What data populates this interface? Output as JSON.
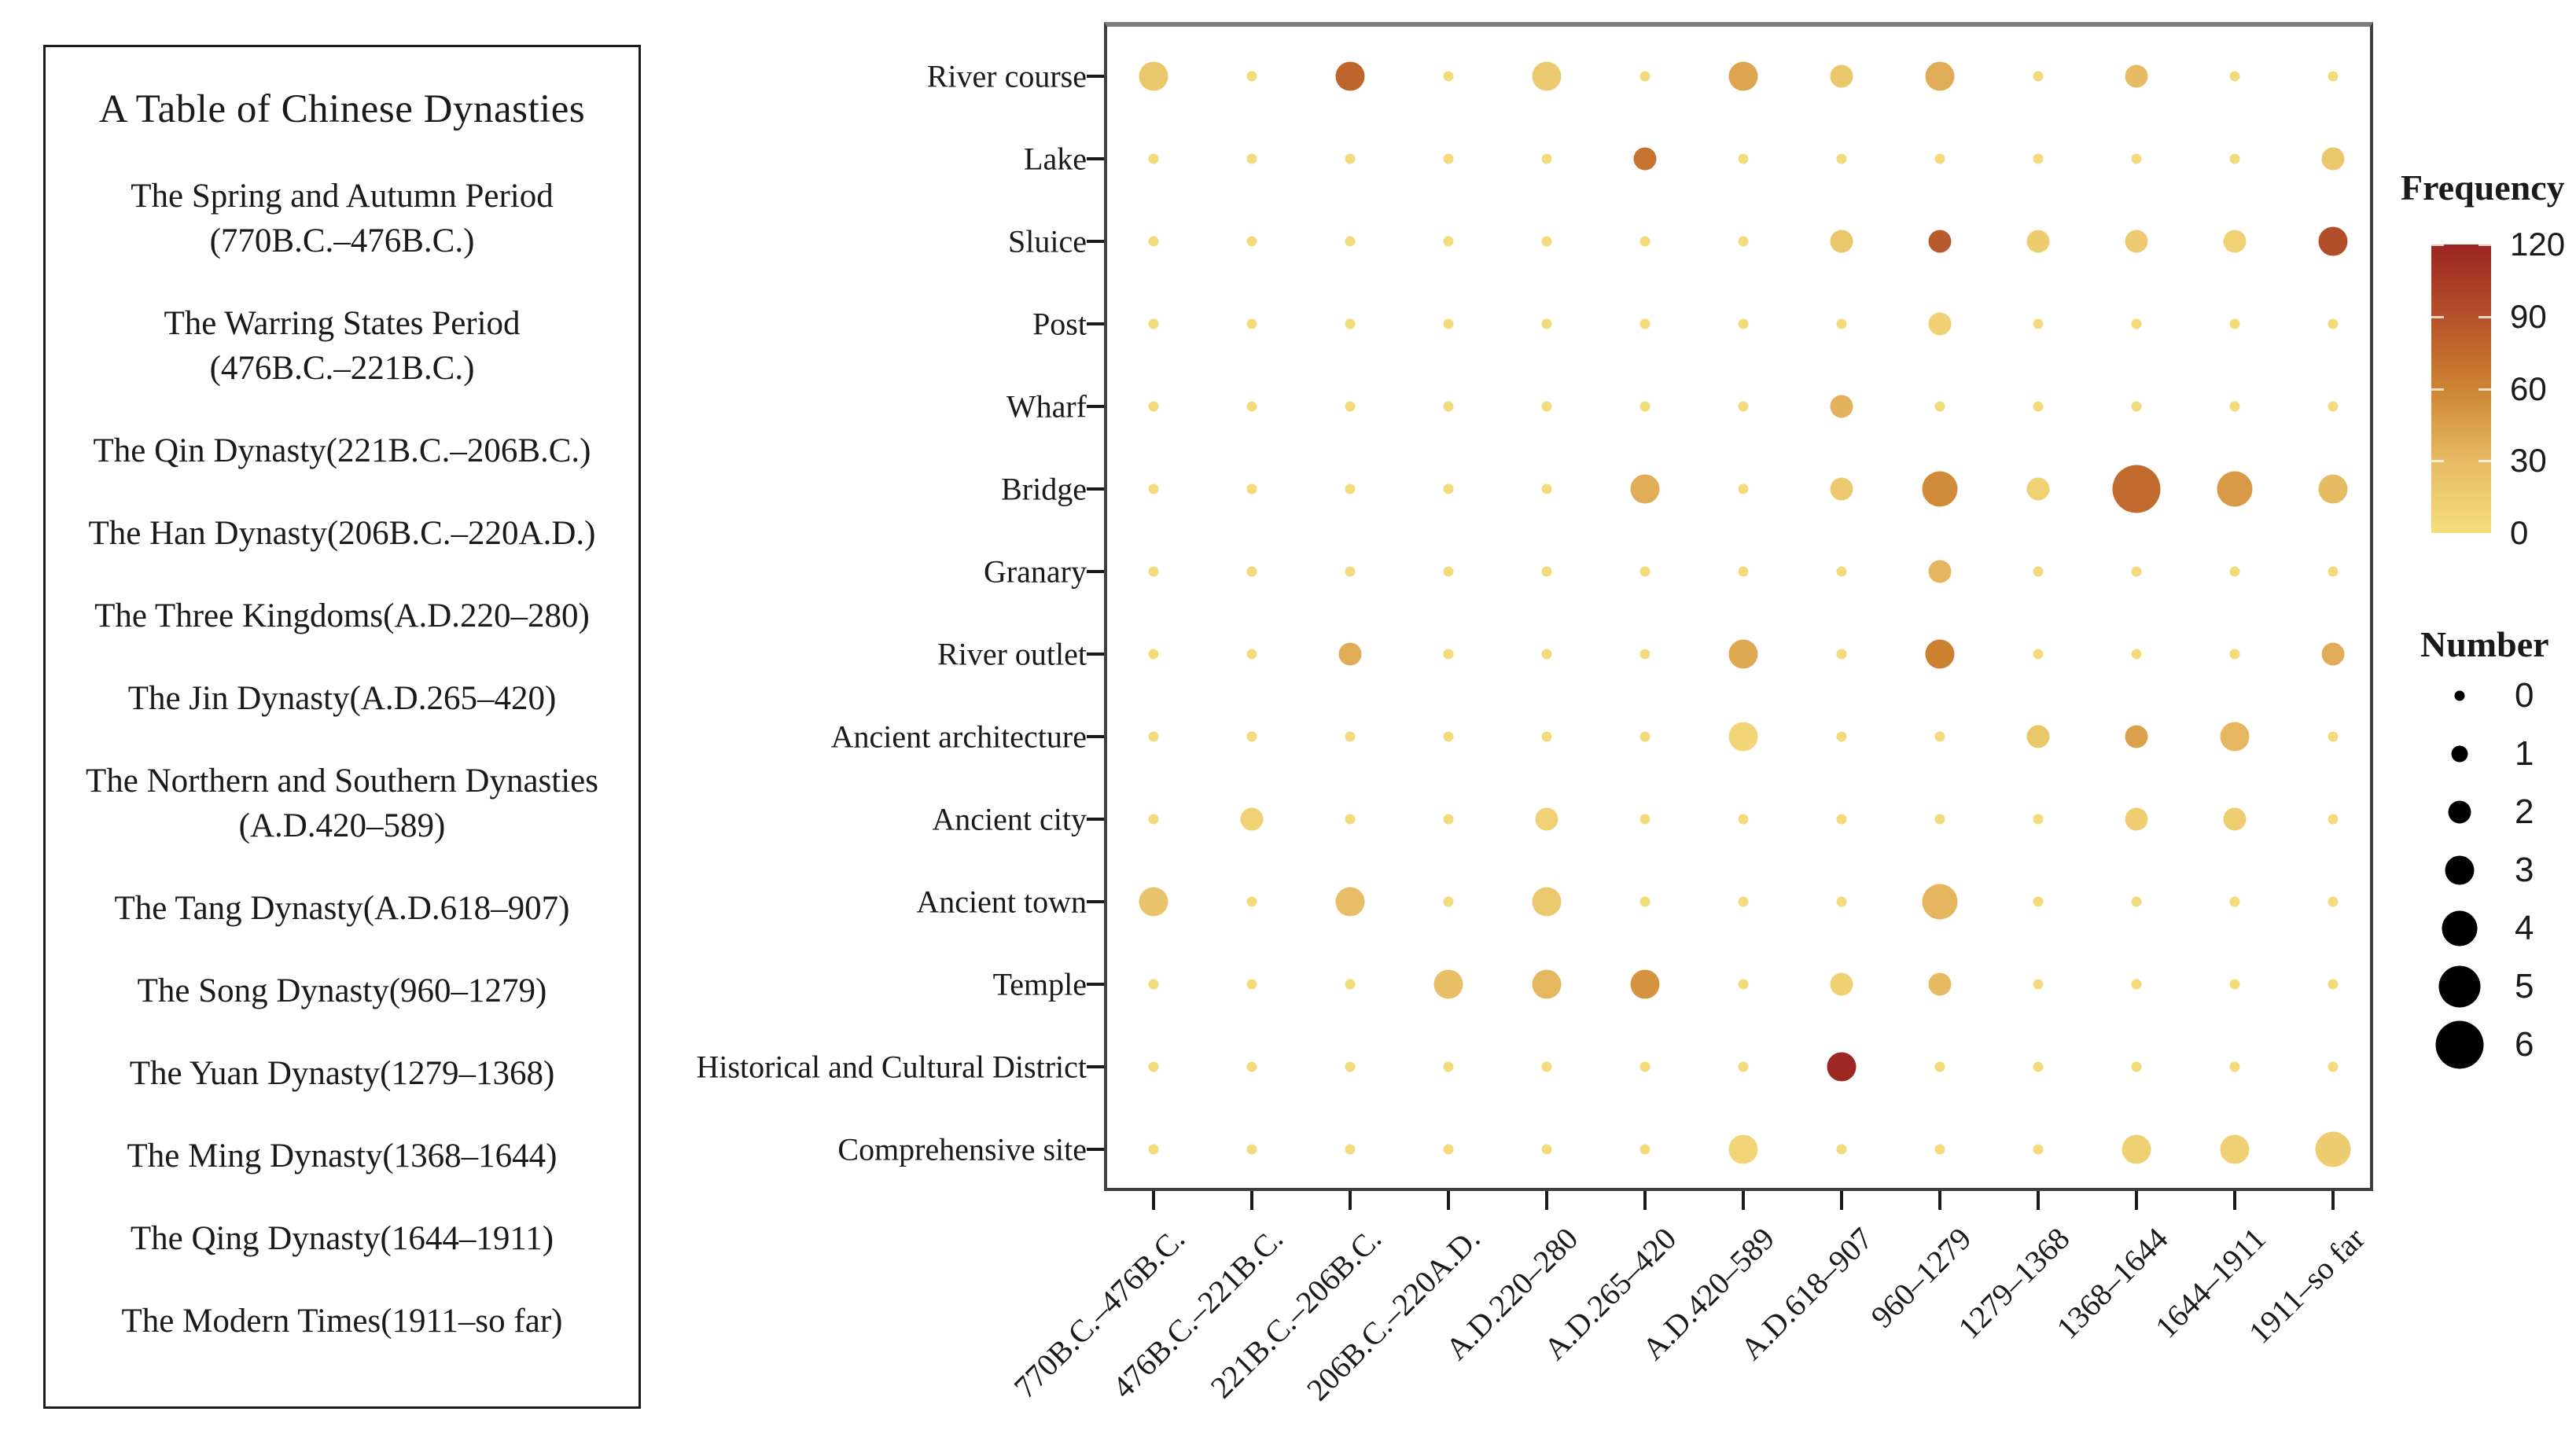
{
  "panel": {
    "title": "A Table of Chinese Dynasties",
    "entries": [
      "The Spring and Autumn Period\n(770B.C.–476B.C.)",
      "The Warring States Period\n(476B.C.–221B.C.)",
      "The Qin Dynasty(221B.C.–206B.C.)",
      "The Han Dynasty(206B.C.–220A.D.)",
      "The Three Kingdoms(A.D.220–280)",
      "The Jin Dynasty(A.D.265–420)",
      "The Northern and Southern Dynasties\n(A.D.420–589)",
      "The Tang Dynasty(A.D.618–907)",
      "The Song Dynasty(960–1279)",
      "The Yuan Dynasty(1279–1368)",
      "The Ming Dynasty(1368–1644)",
      "The Qing Dynasty(1644–1911)",
      "The Modern Times(1911–so far)"
    ]
  },
  "chart_data": {
    "type": "scatter",
    "subtype": "bubble-matrix",
    "title": "",
    "x_categories": [
      "770B.C.–476B.C.",
      "476B.C.–221B.C.",
      "221B.C.–206B.C.",
      "206B.C.–220A.D.",
      "A.D.220–280",
      "A.D.265–420",
      "A.D.420–589",
      "A.D.618–907",
      "960–1279",
      "1279–1368",
      "1368–1644",
      "1644–1911",
      "1911–so far"
    ],
    "y_categories": [
      "River course",
      "Lake",
      "Sluice",
      "Post",
      "Wharf",
      "Bridge",
      "Granary",
      "River outlet",
      "Ancient architecture",
      "Ancient city",
      "Ancient town",
      "Temple",
      "Historical and Cultural District",
      "Comprehensive site"
    ],
    "size_legend": {
      "title": "Number",
      "values": [
        0,
        1,
        2,
        3,
        4,
        5,
        6
      ]
    },
    "color_legend": {
      "title": "Frequency",
      "ticks": [
        120,
        90,
        60,
        30,
        0
      ],
      "range": [
        0,
        120
      ],
      "colormap_stops": [
        {
          "value": 0,
          "color": "#F4DE7D"
        },
        {
          "value": 30,
          "color": "#E7BB64"
        },
        {
          "value": 60,
          "color": "#CE8432"
        },
        {
          "value": 90,
          "color": "#B4512A"
        },
        {
          "value": 120,
          "color": "#9C2422"
        }
      ]
    },
    "number_matrix": [
      [
        3,
        0,
        3,
        0,
        3,
        0,
        3,
        2,
        3,
        0,
        2,
        0,
        0
      ],
      [
        0,
        0,
        0,
        0,
        0,
        2,
        0,
        0,
        0,
        0,
        0,
        0,
        2
      ],
      [
        0,
        0,
        0,
        0,
        0,
        0,
        0,
        2,
        2,
        2,
        2,
        2,
        3
      ],
      [
        0,
        0,
        0,
        0,
        0,
        0,
        0,
        0,
        2,
        0,
        0,
        0,
        0
      ],
      [
        0,
        0,
        0,
        0,
        0,
        0,
        0,
        2,
        0,
        0,
        0,
        0,
        0
      ],
      [
        0,
        0,
        0,
        0,
        0,
        3,
        0,
        2,
        4,
        2,
        6,
        4,
        3
      ],
      [
        0,
        0,
        0,
        0,
        0,
        0,
        0,
        0,
        2,
        0,
        0,
        0,
        0
      ],
      [
        0,
        0,
        2,
        0,
        0,
        0,
        3,
        0,
        3,
        0,
        0,
        0,
        2
      ],
      [
        0,
        0,
        0,
        0,
        0,
        0,
        3,
        0,
        0,
        2,
        2,
        3,
        0
      ],
      [
        0,
        2,
        0,
        0,
        2,
        0,
        0,
        0,
        0,
        0,
        2,
        2,
        0
      ],
      [
        3,
        0,
        3,
        0,
        3,
        0,
        0,
        0,
        4,
        0,
        0,
        0,
        0
      ],
      [
        0,
        0,
        0,
        3,
        3,
        3,
        0,
        2,
        2,
        0,
        0,
        0,
        0
      ],
      [
        0,
        0,
        0,
        0,
        0,
        0,
        0,
        3,
        0,
        0,
        0,
        0,
        0
      ],
      [
        0,
        0,
        0,
        0,
        0,
        0,
        3,
        0,
        0,
        0,
        3,
        3,
        4
      ]
    ],
    "frequency_matrix": [
      [
        20,
        3,
        78,
        3,
        18,
        3,
        42,
        20,
        38,
        3,
        30,
        3,
        3
      ],
      [
        3,
        3,
        3,
        3,
        3,
        70,
        3,
        3,
        3,
        3,
        3,
        3,
        20
      ],
      [
        3,
        3,
        3,
        3,
        3,
        3,
        3,
        20,
        85,
        15,
        17,
        10,
        92
      ],
      [
        3,
        3,
        3,
        3,
        3,
        3,
        3,
        3,
        12,
        3,
        3,
        3,
        3
      ],
      [
        3,
        3,
        3,
        3,
        3,
        3,
        3,
        35,
        3,
        3,
        3,
        3,
        3
      ],
      [
        3,
        3,
        3,
        3,
        3,
        38,
        3,
        18,
        56,
        10,
        75,
        48,
        30
      ],
      [
        3,
        3,
        3,
        3,
        3,
        3,
        3,
        3,
        33,
        3,
        3,
        3,
        3
      ],
      [
        3,
        3,
        38,
        3,
        3,
        3,
        40,
        3,
        62,
        3,
        3,
        3,
        38
      ],
      [
        3,
        3,
        3,
        3,
        3,
        3,
        8,
        3,
        3,
        20,
        45,
        32,
        3
      ],
      [
        3,
        10,
        3,
        3,
        10,
        3,
        3,
        3,
        3,
        3,
        14,
        14,
        3
      ],
      [
        22,
        3,
        28,
        3,
        18,
        3,
        3,
        3,
        33,
        3,
        3,
        3,
        3
      ],
      [
        3,
        3,
        3,
        27,
        32,
        52,
        3,
        12,
        30,
        3,
        3,
        3,
        3
      ],
      [
        3,
        3,
        3,
        3,
        3,
        3,
        3,
        118,
        3,
        3,
        3,
        3,
        3
      ],
      [
        3,
        3,
        3,
        3,
        3,
        3,
        8,
        3,
        3,
        3,
        12,
        12,
        15
      ]
    ]
  }
}
